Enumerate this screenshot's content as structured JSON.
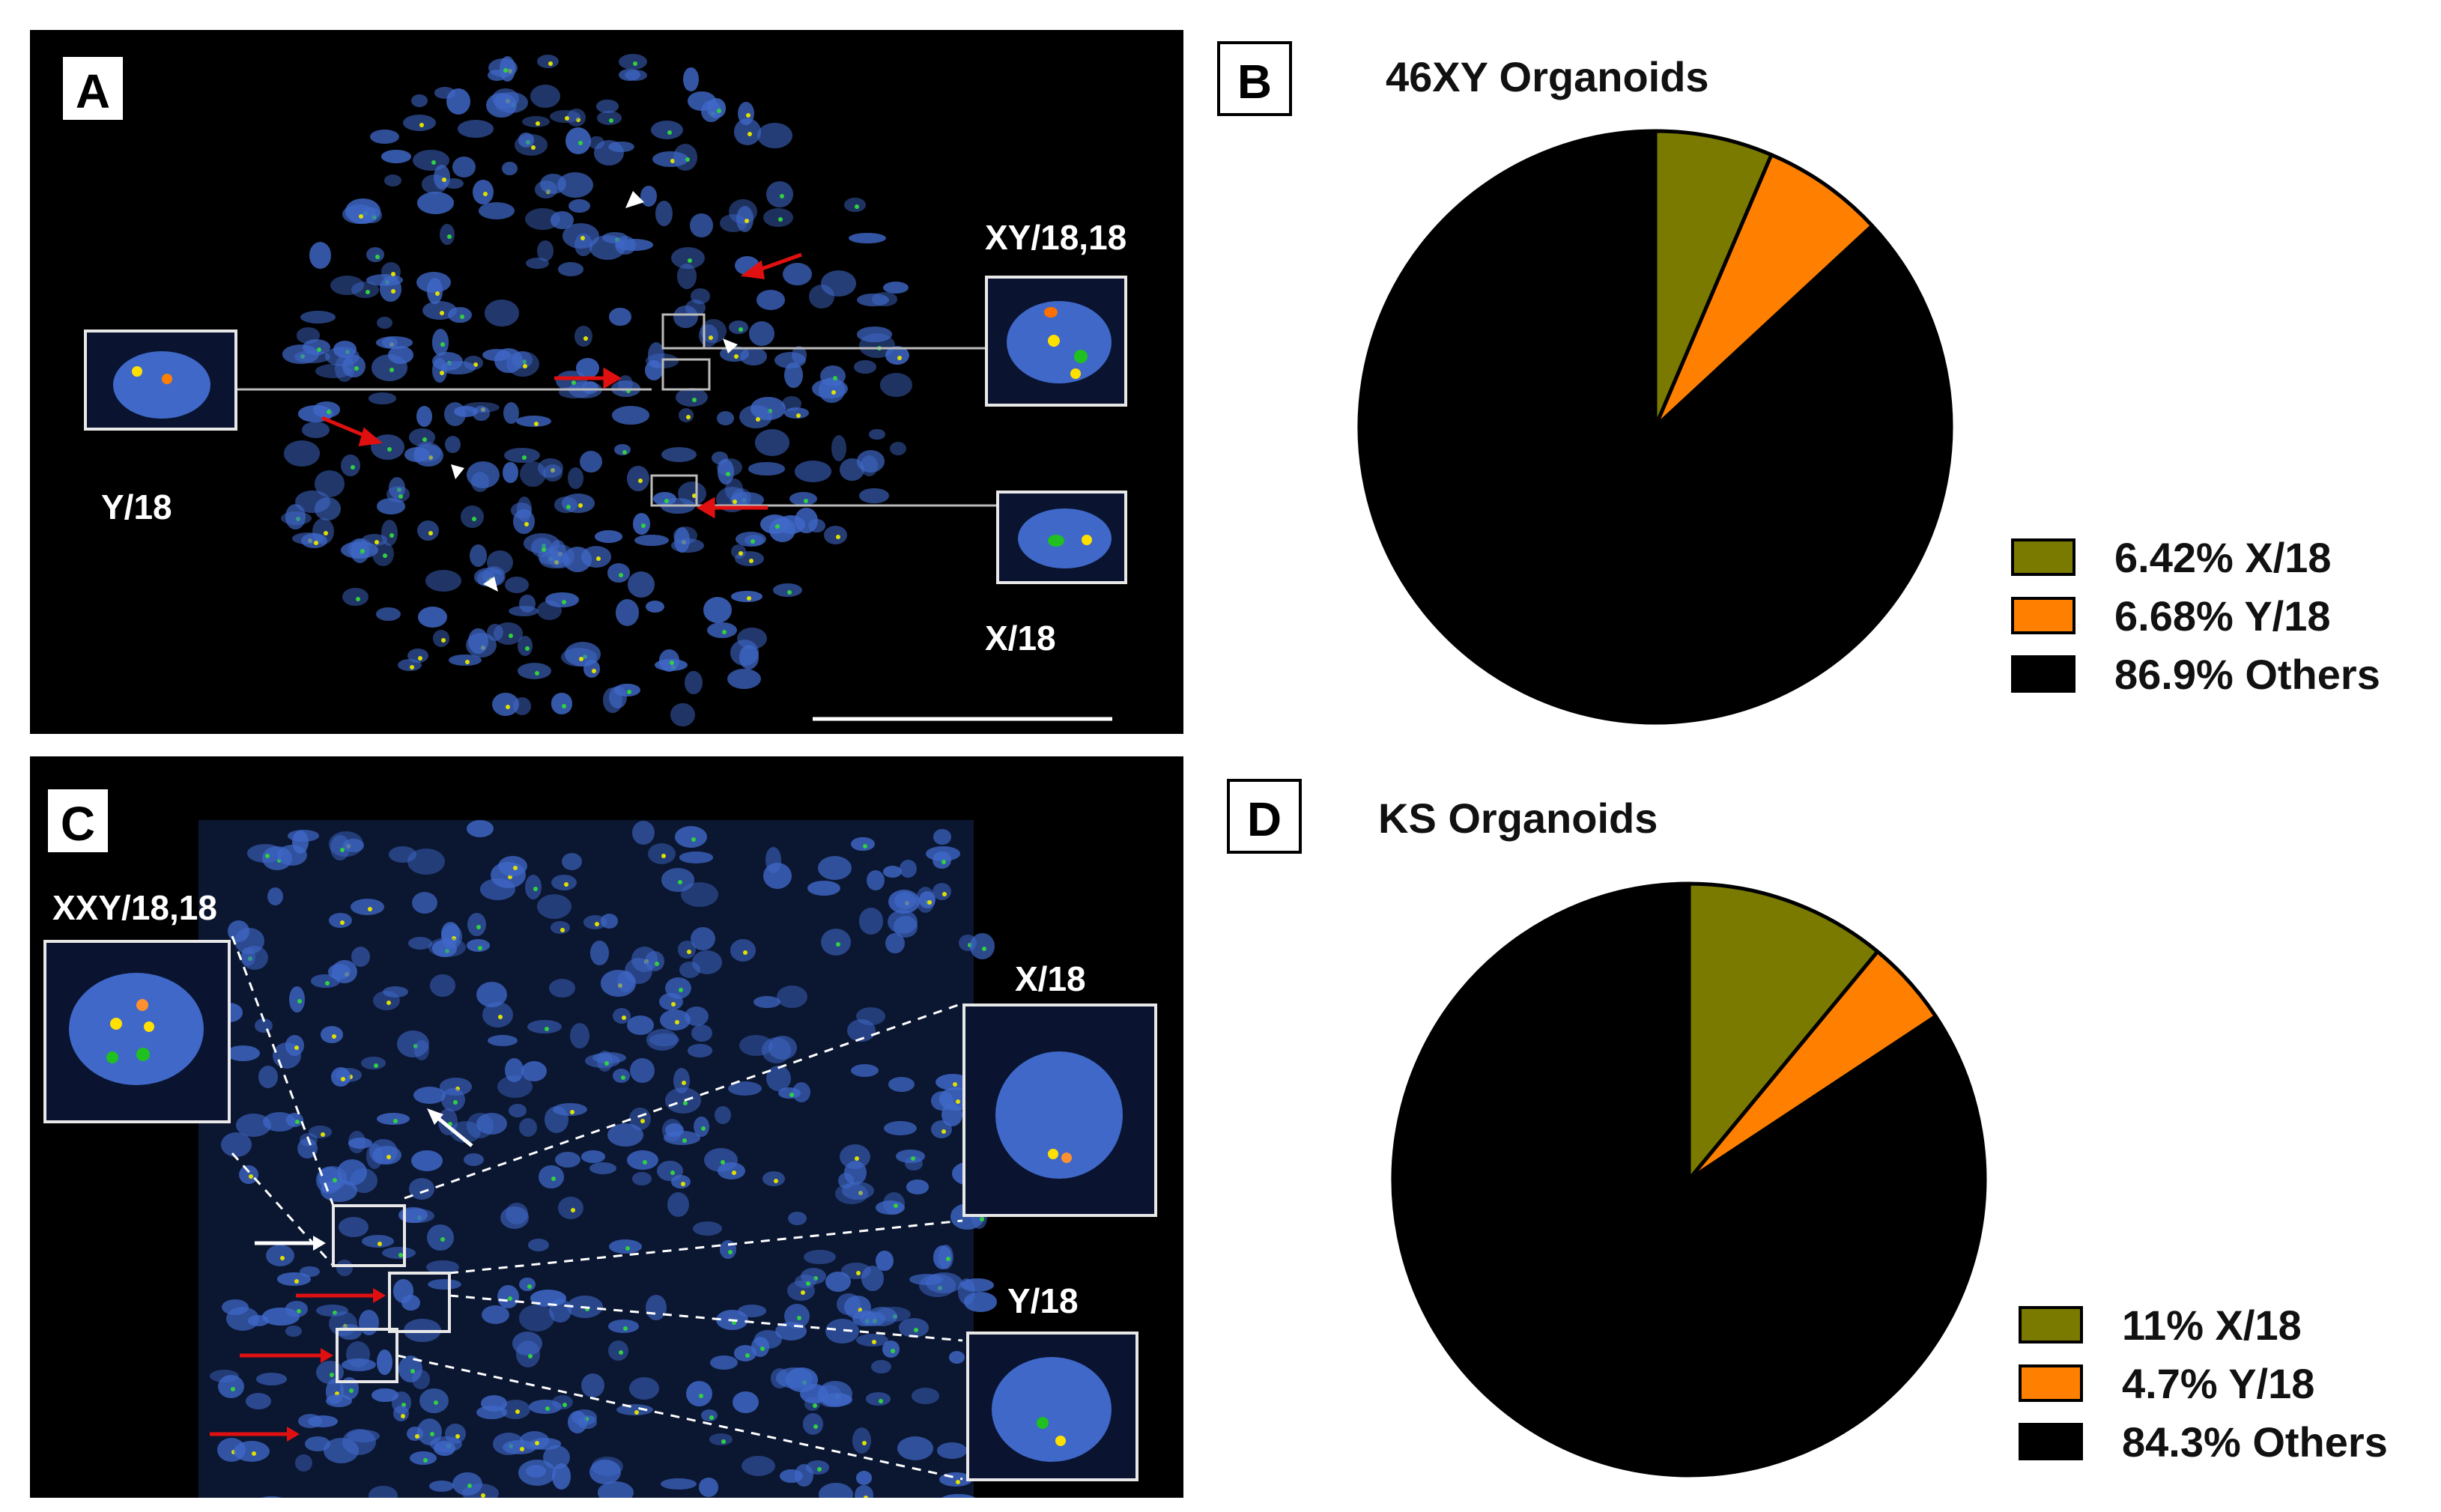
{
  "panels": {
    "a": {
      "letter": "A",
      "labels": {
        "xy": "XY/18,18",
        "y": "Y/18",
        "x": "X/18"
      }
    },
    "b": {
      "letter": "B"
    },
    "c": {
      "letter": "C",
      "labels": {
        "xxy": "XXY/18,18",
        "x": "X/18",
        "y": "Y/18"
      }
    },
    "d": {
      "letter": "D"
    }
  },
  "colors": {
    "x18": "#7a7a00",
    "y18": "#ff8000",
    "others": "#000000",
    "nucleus": "#3f68c8"
  },
  "chart_data": [
    {
      "type": "pie",
      "title": "46XY Organoids",
      "slices": [
        {
          "label": "6.42% X/18",
          "value": 6.42,
          "color": "#7a7a00"
        },
        {
          "label": "6.68% Y/18",
          "value": 6.68,
          "color": "#ff8000"
        },
        {
          "label": "86.9% Others",
          "value": 86.9,
          "color": "#000000"
        }
      ],
      "legend_position": "bottom-right"
    },
    {
      "type": "pie",
      "title": "KS Organoids",
      "slices": [
        {
          "label": "11% X/18",
          "value": 11,
          "color": "#7a7a00"
        },
        {
          "label": "4.7% Y/18",
          "value": 4.7,
          "color": "#ff8000"
        },
        {
          "label": "84.3% Others",
          "value": 84.3,
          "color": "#000000"
        }
      ],
      "legend_position": "bottom-right"
    }
  ]
}
